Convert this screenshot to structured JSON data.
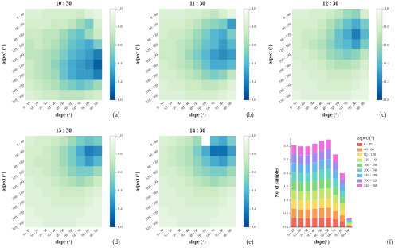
{
  "chart_data": [
    {
      "type": "heatmap",
      "title": "10 : 30",
      "panel_label": "(a)",
      "xlabel": "slope (°)",
      "ylabel": "aspect (°)",
      "x": [
        "0 - 10",
        "10 - 20",
        "20 - 30",
        "30 - 40",
        "40 - 50",
        "50 - 60",
        "60 - 70",
        "70 - 80",
        "80 - 90"
      ],
      "y": [
        "0 - 40",
        "40 - 80",
        "80 - 120",
        "120 - 160",
        "160 - 200",
        "200 - 240",
        "240 - 280",
        "280 - 320",
        "320 - 360"
      ],
      "values": [
        [
          0.85,
          0.85,
          0.8,
          0.8,
          0.8,
          0.8,
          0.75,
          0.85,
          0.9
        ],
        [
          0.8,
          0.8,
          0.8,
          0.75,
          0.75,
          0.7,
          0.6,
          0.5,
          0.8
        ],
        [
          0.75,
          0.75,
          0.7,
          0.7,
          0.6,
          0.5,
          0.45,
          0.6,
          0.75
        ],
        [
          0.7,
          0.75,
          0.7,
          0.65,
          0.55,
          0.45,
          0.4,
          0.35,
          0.5
        ],
        [
          0.7,
          0.7,
          0.65,
          0.6,
          0.5,
          0.4,
          0.35,
          0.3,
          0.2
        ],
        [
          0.75,
          0.7,
          0.65,
          0.55,
          0.45,
          0.35,
          0.3,
          0.25,
          0.1
        ],
        [
          0.75,
          0.7,
          0.65,
          0.6,
          0.45,
          0.35,
          0.3,
          0.3,
          0.2
        ],
        [
          0.8,
          0.75,
          0.7,
          0.65,
          0.55,
          0.5,
          0.45,
          0.5,
          0.6
        ],
        [
          0.85,
          0.8,
          0.75,
          0.75,
          0.7,
          0.7,
          0.7,
          0.75,
          0.8
        ]
      ],
      "clim": [
        0,
        1
      ],
      "cticks": [
        {
          "value": 0,
          "label": "0.0"
        },
        {
          "value": 0.2,
          "label": "0.2"
        },
        {
          "value": 0.4,
          "label": "0.4"
        },
        {
          "value": 0.6,
          "label": "0.6"
        },
        {
          "value": 0.8,
          "label": "0.8"
        },
        {
          "value": 1,
          "label": "1.0"
        }
      ],
      "colormap": [
        "#084081",
        "#0868ac",
        "#2b8cbe",
        "#4eb3d3",
        "#7bccc4",
        "#a8ddb5",
        "#ccebc5",
        "#e0f3db",
        "#f7fcf0"
      ]
    },
    {
      "type": "heatmap",
      "title": "11 : 30",
      "panel_label": "(b)",
      "xlabel": "slope (°)",
      "ylabel": "aspect (°)",
      "x": [
        "0 - 10",
        "10 - 20",
        "20 - 30",
        "30 - 40",
        "40 - 50",
        "50 - 60",
        "60 - 70",
        "70 - 80",
        "80 - 90"
      ],
      "y": [
        "0 - 40",
        "40 - 80",
        "80 - 120",
        "120 - 160",
        "160 - 200",
        "200 - 240",
        "240 - 280",
        "280 - 320",
        "320 - 360"
      ],
      "values": [
        [
          0.85,
          0.85,
          0.85,
          0.8,
          0.8,
          0.75,
          0.7,
          0.8,
          0.9
        ],
        [
          0.8,
          0.8,
          0.8,
          0.75,
          0.7,
          0.6,
          0.55,
          0.5,
          0.3
        ],
        [
          0.8,
          0.75,
          0.75,
          0.7,
          0.6,
          0.5,
          0.4,
          0.35,
          0.5
        ],
        [
          0.75,
          0.75,
          0.7,
          0.65,
          0.55,
          0.45,
          0.4,
          0.3,
          0.4
        ],
        [
          0.75,
          0.75,
          0.7,
          0.6,
          0.5,
          0.4,
          0.3,
          0.25,
          0.3
        ],
        [
          0.8,
          0.75,
          0.7,
          0.65,
          0.55,
          0.45,
          0.35,
          0.35,
          0.4
        ],
        [
          0.8,
          0.8,
          0.75,
          0.7,
          0.65,
          0.55,
          0.5,
          0.55,
          0.7
        ],
        [
          0.85,
          0.8,
          0.8,
          0.75,
          0.75,
          0.7,
          0.7,
          0.75,
          0.85
        ],
        [
          0.85,
          0.85,
          0.85,
          0.8,
          0.8,
          0.8,
          0.8,
          0.85,
          0.9
        ]
      ],
      "clim": [
        0,
        1
      ],
      "cticks": [
        {
          "value": 0,
          "label": "0.0"
        },
        {
          "value": 0.2,
          "label": "0.2"
        },
        {
          "value": 0.4,
          "label": "0.4"
        },
        {
          "value": 0.6,
          "label": "0.6"
        },
        {
          "value": 0.8,
          "label": "0.8"
        },
        {
          "value": 1,
          "label": "1.0"
        }
      ],
      "colormap": [
        "#084081",
        "#0868ac",
        "#2b8cbe",
        "#4eb3d3",
        "#7bccc4",
        "#a8ddb5",
        "#ccebc5",
        "#e0f3db",
        "#f7fcf0"
      ]
    },
    {
      "type": "heatmap",
      "title": "12 : 30",
      "panel_label": "(c)",
      "xlabel": "slope (°)",
      "ylabel": "aspect (°)",
      "x": [
        "0 - 10",
        "10 - 20",
        "20 - 30",
        "30 - 40",
        "40 - 50",
        "50 - 60",
        "60 - 70",
        "70 - 80",
        "80 - 90"
      ],
      "y": [
        "0 - 40",
        "40 - 80",
        "80 - 120",
        "120 - 160",
        "160 - 200",
        "200 - 240",
        "240 - 280",
        "280 - 320",
        "320 - 360"
      ],
      "values": [
        [
          0.85,
          0.85,
          0.8,
          0.8,
          0.75,
          0.7,
          0.6,
          0.55,
          0.8
        ],
        [
          0.8,
          0.8,
          0.8,
          0.75,
          0.65,
          0.55,
          0.45,
          0.35,
          0.5
        ],
        [
          0.8,
          0.75,
          0.75,
          0.7,
          0.6,
          0.45,
          0.35,
          0.2,
          0.4
        ],
        [
          0.8,
          0.75,
          0.7,
          0.65,
          0.55,
          0.45,
          0.4,
          0.3,
          0.5
        ],
        [
          0.8,
          0.8,
          0.75,
          0.7,
          0.6,
          0.55,
          0.5,
          0.55,
          0.7
        ],
        [
          0.85,
          0.8,
          0.8,
          0.75,
          0.7,
          0.65,
          0.65,
          0.7,
          0.8
        ],
        [
          0.85,
          0.85,
          0.8,
          0.8,
          0.75,
          0.75,
          0.75,
          0.8,
          0.85
        ],
        [
          0.85,
          0.85,
          0.85,
          0.8,
          0.8,
          0.8,
          0.8,
          0.85,
          0.9
        ],
        [
          0.9,
          0.85,
          0.85,
          0.85,
          0.85,
          0.85,
          0.85,
          0.9,
          0.9
        ]
      ],
      "clim": [
        0,
        1
      ],
      "cticks": [
        {
          "value": 0,
          "label": "0.0"
        },
        {
          "value": 0.2,
          "label": "0.2"
        },
        {
          "value": 0.4,
          "label": "0.4"
        },
        {
          "value": 0.6,
          "label": "0.6"
        },
        {
          "value": 0.8,
          "label": "0.8"
        },
        {
          "value": 1,
          "label": "1.0"
        }
      ],
      "colormap": [
        "#084081",
        "#0868ac",
        "#2b8cbe",
        "#4eb3d3",
        "#7bccc4",
        "#a8ddb5",
        "#ccebc5",
        "#e0f3db",
        "#f7fcf0"
      ]
    },
    {
      "type": "heatmap",
      "title": "13 : 30",
      "panel_label": "(d)",
      "xlabel": "slope (°)",
      "ylabel": "aspect (°)",
      "x": [
        "0 - 10",
        "10 - 20",
        "20 - 30",
        "30 - 40",
        "40 - 50",
        "50 - 60",
        "60 - 70",
        "70 - 80",
        "80 - 90"
      ],
      "y": [
        "0 - 40",
        "40 - 80",
        "80 - 120",
        "120 - 160",
        "160 - 200",
        "200 - 240",
        "240 - 280",
        "280 - 320",
        "320 - 360"
      ],
      "values": [
        [
          0.85,
          0.8,
          0.8,
          0.75,
          0.7,
          0.6,
          0.5,
          0.45,
          0.5
        ],
        [
          0.8,
          0.8,
          0.75,
          0.7,
          0.6,
          0.5,
          0.35,
          0.2,
          0.25
        ],
        [
          0.8,
          0.75,
          0.75,
          0.7,
          0.6,
          0.5,
          0.4,
          0.3,
          0.4
        ],
        [
          0.8,
          0.8,
          0.75,
          0.7,
          0.65,
          0.55,
          0.5,
          0.5,
          0.6
        ],
        [
          0.85,
          0.8,
          0.8,
          0.75,
          0.7,
          0.65,
          0.6,
          0.65,
          0.75
        ],
        [
          0.85,
          0.85,
          0.8,
          0.8,
          0.75,
          0.75,
          0.75,
          0.8,
          0.85
        ],
        [
          0.85,
          0.85,
          0.85,
          0.8,
          0.8,
          0.8,
          0.8,
          0.85,
          0.9
        ],
        [
          0.9,
          0.85,
          0.85,
          0.85,
          0.85,
          0.85,
          0.85,
          0.9,
          0.9
        ],
        [
          0.9,
          0.9,
          0.85,
          0.85,
          0.85,
          0.85,
          0.9,
          0.9,
          0.9
        ]
      ],
      "clim": [
        0,
        1
      ],
      "cticks": [
        {
          "value": 0,
          "label": "0.0"
        },
        {
          "value": 0.2,
          "label": "0.2"
        },
        {
          "value": 0.4,
          "label": "0.4"
        },
        {
          "value": 0.6,
          "label": "0.6"
        },
        {
          "value": 0.8,
          "label": "0.8"
        },
        {
          "value": 1,
          "label": "1.0"
        }
      ],
      "colormap": [
        "#084081",
        "#0868ac",
        "#2b8cbe",
        "#4eb3d3",
        "#7bccc4",
        "#a8ddb5",
        "#ccebc5",
        "#e0f3db",
        "#f7fcf0"
      ]
    },
    {
      "type": "heatmap",
      "title": "14 : 30",
      "panel_label": "(e)",
      "xlabel": "slope (°)",
      "ylabel": "aspect (°)",
      "x": [
        "0 - 10",
        "10 - 20",
        "20 - 30",
        "30 - 40",
        "40 - 50",
        "50 - 60",
        "60 - 70",
        "70 - 80",
        "80 - 90"
      ],
      "y": [
        "0 - 40",
        "40 - 80",
        "80 - 120",
        "120 - 160",
        "160 - 200",
        "200 - 240",
        "240 - 280",
        "280 - 320",
        "320 - 360"
      ],
      "values": [
        [
          0.85,
          0.8,
          0.75,
          0.7,
          0.6,
          null,
          0.4,
          0.35,
          0.5
        ],
        [
          0.8,
          0.75,
          0.7,
          0.65,
          0.5,
          0.35,
          0.15,
          0.15,
          0.3
        ],
        [
          0.8,
          0.75,
          0.7,
          0.65,
          0.55,
          0.45,
          0.35,
          0.3,
          0.45
        ],
        [
          0.8,
          0.8,
          0.75,
          0.7,
          0.6,
          0.55,
          0.5,
          0.5,
          0.6
        ],
        [
          0.85,
          0.8,
          0.8,
          0.75,
          0.7,
          0.65,
          0.6,
          0.65,
          0.7
        ],
        [
          0.85,
          0.85,
          0.8,
          0.8,
          0.75,
          0.75,
          0.75,
          0.8,
          0.85
        ],
        [
          0.85,
          0.85,
          0.85,
          0.8,
          0.8,
          0.8,
          0.8,
          0.85,
          0.9
        ],
        [
          0.9,
          0.85,
          0.85,
          0.85,
          0.85,
          0.85,
          0.85,
          0.9,
          0.9
        ],
        [
          0.9,
          0.9,
          0.85,
          0.85,
          0.85,
          0.85,
          0.9,
          0.9,
          0.9
        ]
      ],
      "clim": [
        0,
        1
      ],
      "cticks": [
        {
          "value": 0,
          "label": "0.0"
        },
        {
          "value": 0.2,
          "label": "0.2"
        },
        {
          "value": 0.4,
          "label": "0.4"
        },
        {
          "value": 0.6,
          "label": "0.6"
        },
        {
          "value": 0.8,
          "label": "0.8"
        },
        {
          "value": 1,
          "label": "1.0"
        }
      ],
      "colormap": [
        "#084081",
        "#0868ac",
        "#2b8cbe",
        "#4eb3d3",
        "#7bccc4",
        "#a8ddb5",
        "#ccebc5",
        "#e0f3db",
        "#f7fcf0"
      ]
    },
    {
      "type": "bar",
      "stacked": true,
      "panel_label": "(f)",
      "xlabel": "slope(°)",
      "ylabel": "No. of samples",
      "legend_title": "aspect(°)",
      "categories": [
        "0 - 10",
        "10 - 20",
        "20 - 30",
        "30 - 40",
        "40 - 50",
        "50 - 60",
        "60 - 70",
        "70 - 80",
        "80 - 90"
      ],
      "ylim": [
        0,
        3.3
      ],
      "yticks": [
        {
          "value": 0,
          "label": "0.0"
        },
        {
          "value": 0.5,
          "label": "0.5"
        },
        {
          "value": 1,
          "label": "1.0"
        },
        {
          "value": 1.5,
          "label": "1.5"
        },
        {
          "value": 2,
          "label": "2.0"
        },
        {
          "value": 2.5,
          "label": "2.5"
        },
        {
          "value": 3,
          "label": "3.0"
        }
      ],
      "series": [
        {
          "name": "0 - 40",
          "color": "#f4665a",
          "values": [
            0.35,
            0.33,
            0.33,
            0.34,
            0.35,
            0.36,
            0.3,
            0.22,
            0.04
          ]
        },
        {
          "name": "40 - 80",
          "color": "#f99a52",
          "values": [
            0.34,
            0.33,
            0.33,
            0.34,
            0.36,
            0.36,
            0.3,
            0.22,
            0.04
          ]
        },
        {
          "name": "80 - 120",
          "color": "#f7d95c",
          "values": [
            0.34,
            0.34,
            0.33,
            0.35,
            0.36,
            0.36,
            0.3,
            0.22,
            0.04
          ]
        },
        {
          "name": "120 - 160",
          "color": "#c4e36a",
          "values": [
            0.34,
            0.33,
            0.34,
            0.34,
            0.35,
            0.36,
            0.3,
            0.23,
            0.04
          ]
        },
        {
          "name": "160 - 200",
          "color": "#7fd87c",
          "values": [
            0.34,
            0.33,
            0.33,
            0.35,
            0.35,
            0.36,
            0.3,
            0.22,
            0.04
          ]
        },
        {
          "name": "200 - 240",
          "color": "#5fd6c2",
          "values": [
            0.34,
            0.34,
            0.34,
            0.34,
            0.36,
            0.36,
            0.3,
            0.22,
            0.04
          ]
        },
        {
          "name": "240 - 280",
          "color": "#67b5ef",
          "values": [
            0.33,
            0.33,
            0.33,
            0.35,
            0.35,
            0.37,
            0.3,
            0.22,
            0.04
          ]
        },
        {
          "name": "280 - 320",
          "color": "#9f8cf0",
          "values": [
            0.33,
            0.33,
            0.33,
            0.34,
            0.36,
            0.36,
            0.3,
            0.23,
            0.04
          ]
        },
        {
          "name": "320 - 360",
          "color": "#ee6fd9",
          "values": [
            0.34,
            0.34,
            0.34,
            0.35,
            0.36,
            0.36,
            0.3,
            0.22,
            0.03
          ]
        }
      ]
    }
  ]
}
